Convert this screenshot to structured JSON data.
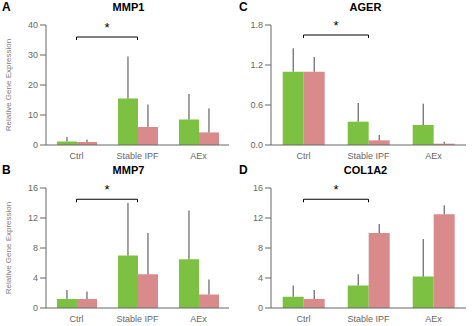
{
  "chart_data": [
    {
      "type": "bar",
      "panel_label": "A",
      "title": "MMP1",
      "y_label": "Relative Gene Expression",
      "categories": [
        "Ctrl",
        "Stable IPF",
        "AEx"
      ],
      "series": [
        {
          "color": "#7DC142",
          "values": [
            1.2,
            15.5,
            8.5
          ],
          "errors": [
            1.5,
            14.0,
            8.5
          ]
        },
        {
          "color": "#D98B8B",
          "values": [
            1.0,
            6.0,
            4.2
          ],
          "errors": [
            0.8,
            7.5,
            8.0
          ]
        }
      ],
      "ylim": [
        0,
        40
      ],
      "yticks": [
        0,
        10,
        20,
        30,
        40
      ],
      "grid": false,
      "bracket": {
        "from": "Ctrl",
        "to": "Stable IPF",
        "y": 36,
        "text": "*"
      }
    },
    {
      "type": "bar",
      "panel_label": "B",
      "title": "MMP7",
      "y_label": "Relative Gene Expression",
      "categories": [
        "Ctrl",
        "Stable IPF",
        "AEx"
      ],
      "series": [
        {
          "color": "#7DC142",
          "values": [
            1.2,
            7.0,
            6.5
          ],
          "errors": [
            1.2,
            7.0,
            6.5
          ]
        },
        {
          "color": "#D98B8B",
          "values": [
            1.2,
            4.5,
            1.8
          ],
          "errors": [
            1.0,
            5.5,
            2.0
          ]
        }
      ],
      "ylim": [
        0,
        16
      ],
      "yticks": [
        0,
        4,
        8,
        12,
        16
      ],
      "grid": false,
      "bracket": {
        "from": "Ctrl",
        "to": "Stable IPF",
        "y": 14.5,
        "text": "*"
      }
    },
    {
      "type": "bar",
      "panel_label": "C",
      "title": "AGER",
      "categories": [
        "Ctrl",
        "Stable IPF",
        "AEx"
      ],
      "series": [
        {
          "color": "#7DC142",
          "values": [
            1.1,
            0.35,
            0.3
          ],
          "errors": [
            0.35,
            0.28,
            0.32
          ]
        },
        {
          "color": "#D98B8B",
          "values": [
            1.1,
            0.07,
            0.02
          ],
          "errors": [
            0.22,
            0.08,
            0.03
          ]
        }
      ],
      "ylim": [
        0,
        1.8
      ],
      "yticks": [
        {
          "value": 0,
          "label": "0.0"
        },
        0.6,
        1.2,
        1.8
      ],
      "grid": false,
      "bracket": {
        "from": "Ctrl",
        "to": "Stable IPF",
        "y": 1.65,
        "text": "*"
      }
    },
    {
      "type": "bar",
      "panel_label": "D",
      "title": "COL1A2",
      "categories": [
        "Ctrl",
        "Stable IPF",
        "AEx"
      ],
      "series": [
        {
          "color": "#7DC142",
          "values": [
            1.5,
            3.0,
            4.2
          ],
          "errors": [
            1.5,
            1.5,
            5.0
          ]
        },
        {
          "color": "#D98B8B",
          "values": [
            1.2,
            10.0,
            12.5
          ],
          "errors": [
            1.2,
            1.2,
            1.2
          ]
        }
      ],
      "ylim": [
        0,
        16
      ],
      "yticks": [
        0,
        4,
        8,
        12,
        16
      ],
      "grid": false,
      "bracket": {
        "from": "Ctrl",
        "to": "Stable IPF",
        "y": 14.5,
        "text": "*"
      }
    }
  ]
}
